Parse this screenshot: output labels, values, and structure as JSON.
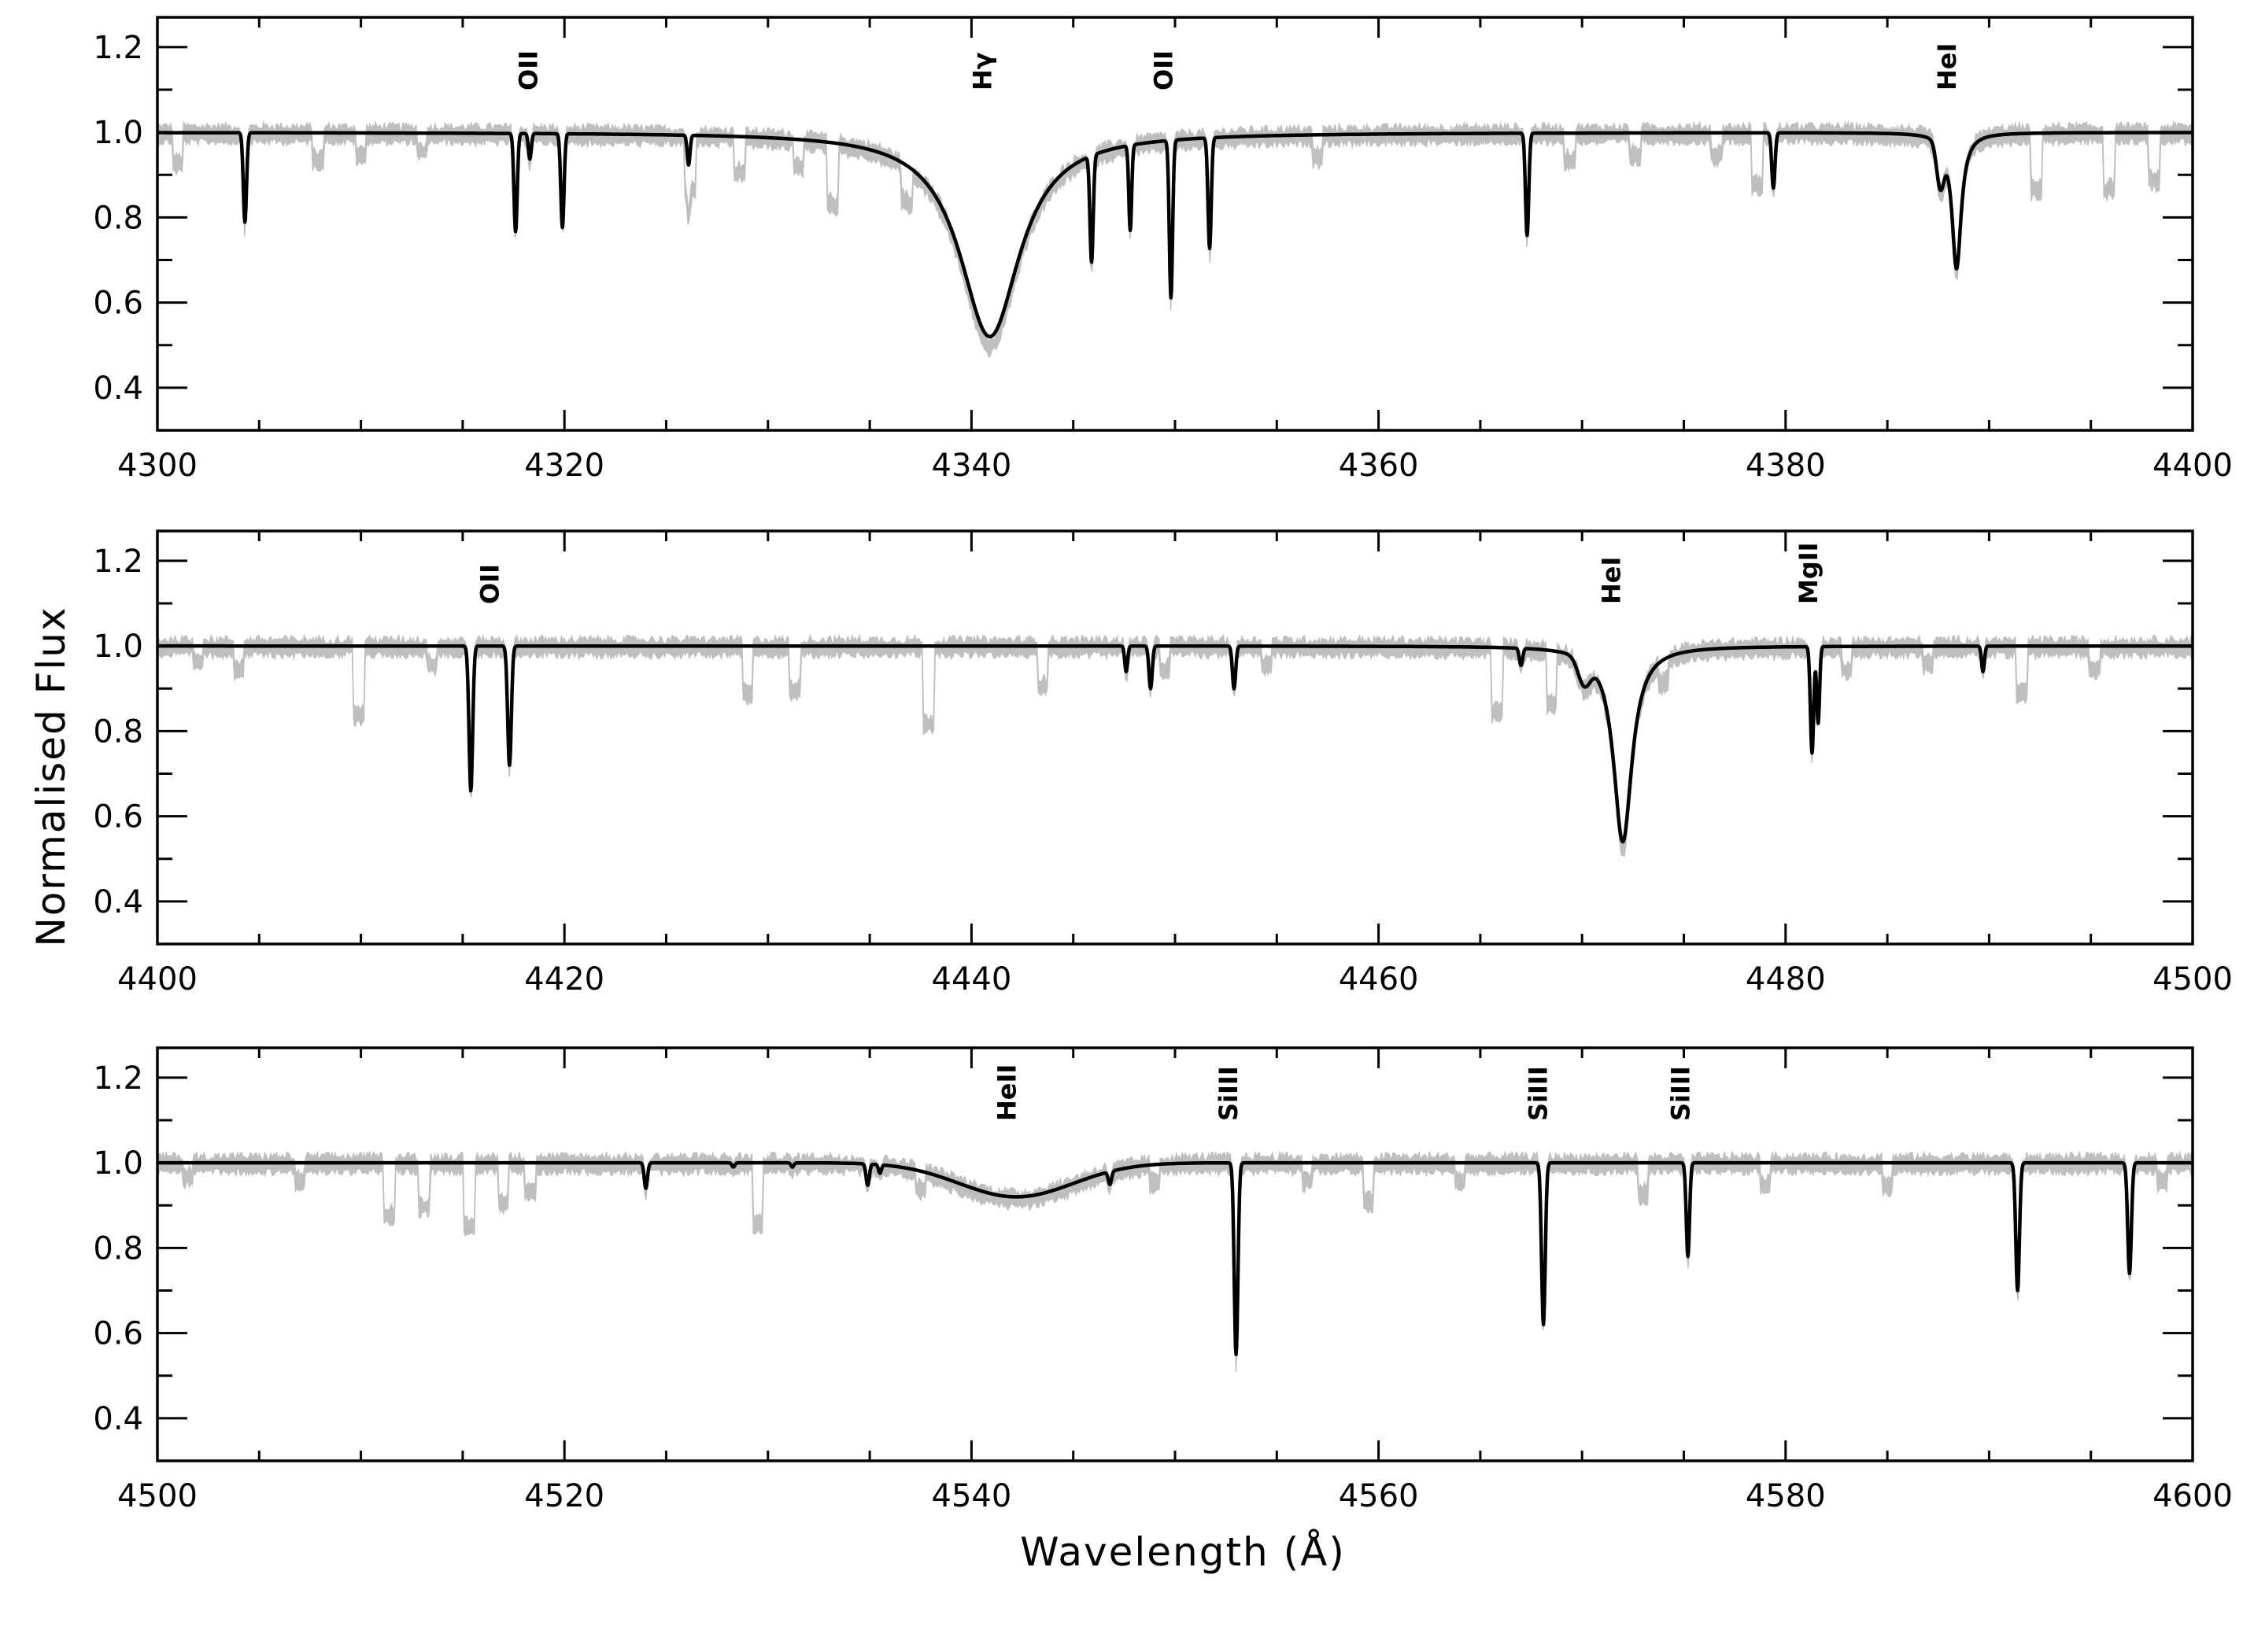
{
  "chart_data": [
    {
      "type": "line",
      "panel": "panel-1",
      "xlim": [
        4300,
        4400
      ],
      "ylim": [
        0.3,
        1.27
      ],
      "x_ticks": [
        4300,
        4320,
        4340,
        4360,
        4380,
        4400
      ],
      "x_tick_labels": [
        "4300",
        "4320",
        "4340",
        "4360",
        "4380",
        "4400"
      ],
      "y_ticks": [
        0.4,
        0.6,
        0.8,
        1.0,
        1.2
      ],
      "y_tick_labels": [
        "0.4",
        "0.6",
        "0.8",
        "1.0",
        "1.2"
      ],
      "continuum": 1.0,
      "line_labels": [
        {
          "text": "OII",
          "x": 4318.2
        },
        {
          "text": "Hγ",
          "x": 4340.5
        },
        {
          "text": "OII",
          "x": 4349.4
        },
        {
          "text": "HeI",
          "x": 4387.9
        }
      ],
      "model_lines": [
        {
          "center": 4304.3,
          "depth": 0.21,
          "width": 0.08,
          "shape": "gauss"
        },
        {
          "center": 4317.6,
          "depth": 0.23,
          "width": 0.08,
          "shape": "gauss"
        },
        {
          "center": 4318.3,
          "depth": 0.06,
          "width": 0.07,
          "shape": "gauss"
        },
        {
          "center": 4319.9,
          "depth": 0.22,
          "width": 0.08,
          "shape": "gauss"
        },
        {
          "center": 4326.1,
          "depth": 0.07,
          "width": 0.07,
          "shape": "gauss"
        },
        {
          "center": 4340.9,
          "depth": 0.48,
          "width": 1.8,
          "shape": "lorentz"
        },
        {
          "center": 4345.9,
          "depth": 0.25,
          "width": 0.08,
          "shape": "gauss"
        },
        {
          "center": 4347.8,
          "depth": 0.2,
          "width": 0.07,
          "shape": "gauss"
        },
        {
          "center": 4349.8,
          "depth": 0.37,
          "width": 0.08,
          "shape": "gauss"
        },
        {
          "center": 4351.7,
          "depth": 0.26,
          "width": 0.08,
          "shape": "gauss"
        },
        {
          "center": 4367.3,
          "depth": 0.24,
          "width": 0.08,
          "shape": "gauss"
        },
        {
          "center": 4379.4,
          "depth": 0.13,
          "width": 0.08,
          "shape": "gauss"
        },
        {
          "center": 4387.6,
          "depth": 0.1,
          "width": 0.18,
          "shape": "gauss"
        },
        {
          "center": 4388.4,
          "depth": 0.32,
          "width": 0.28,
          "shape": "lorentz"
        }
      ],
      "observed_extra_dips": [
        {
          "center": 4301.0,
          "depth": 0.07
        },
        {
          "center": 4307.9,
          "depth": 0.06
        },
        {
          "center": 4310.0,
          "depth": 0.05
        },
        {
          "center": 4313.0,
          "depth": 0.04
        },
        {
          "center": 4326.2,
          "depth": 0.12
        },
        {
          "center": 4328.6,
          "depth": 0.08
        },
        {
          "center": 4331.5,
          "depth": 0.06
        },
        {
          "center": 4333.2,
          "depth": 0.14
        },
        {
          "center": 4336.8,
          "depth": 0.08
        },
        {
          "center": 4357.0,
          "depth": 0.05
        },
        {
          "center": 4369.4,
          "depth": 0.06
        },
        {
          "center": 4372.6,
          "depth": 0.05
        },
        {
          "center": 4376.6,
          "depth": 0.05
        },
        {
          "center": 4378.6,
          "depth": 0.12
        },
        {
          "center": 4392.3,
          "depth": 0.13
        },
        {
          "center": 4395.9,
          "depth": 0.13
        },
        {
          "center": 4398.1,
          "depth": 0.11
        }
      ]
    },
    {
      "type": "line",
      "panel": "panel-2",
      "xlim": [
        4400,
        4500
      ],
      "ylim": [
        0.3,
        1.27
      ],
      "x_ticks": [
        4400,
        4420,
        4440,
        4460,
        4480,
        4500
      ],
      "x_tick_labels": [
        "4400",
        "4420",
        "4440",
        "4460",
        "4480",
        "4500"
      ],
      "y_ticks": [
        0.4,
        0.6,
        0.8,
        1.0,
        1.2
      ],
      "y_tick_labels": [
        "0.4",
        "0.6",
        "0.8",
        "1.0",
        "1.2"
      ],
      "continuum": 1.0,
      "line_labels": [
        {
          "text": "OII",
          "x": 4416.3
        },
        {
          "text": "HeI",
          "x": 4471.4
        },
        {
          "text": "MgII",
          "x": 4481.1
        }
      ],
      "model_lines": [
        {
          "center": 4415.4,
          "depth": 0.34,
          "width": 0.09,
          "shape": "gauss"
        },
        {
          "center": 4417.3,
          "depth": 0.28,
          "width": 0.09,
          "shape": "gauss"
        },
        {
          "center": 4447.6,
          "depth": 0.06,
          "width": 0.07,
          "shape": "gauss"
        },
        {
          "center": 4448.8,
          "depth": 0.1,
          "width": 0.08,
          "shape": "gauss"
        },
        {
          "center": 4452.9,
          "depth": 0.1,
          "width": 0.08,
          "shape": "gauss"
        },
        {
          "center": 4467.0,
          "depth": 0.04,
          "width": 0.08,
          "shape": "gauss"
        },
        {
          "center": 4470.1,
          "depth": 0.06,
          "width": 0.3,
          "shape": "gauss"
        },
        {
          "center": 4472.0,
          "depth": 0.46,
          "width": 0.55,
          "shape": "lorentz"
        },
        {
          "center": 4481.3,
          "depth": 0.25,
          "width": 0.08,
          "shape": "gauss"
        },
        {
          "center": 4481.6,
          "depth": 0.18,
          "width": 0.07,
          "shape": "gauss"
        },
        {
          "center": 4489.7,
          "depth": 0.06,
          "width": 0.07,
          "shape": "gauss"
        }
      ],
      "observed_extra_dips": [
        {
          "center": 4402.0,
          "depth": 0.03
        },
        {
          "center": 4404.0,
          "depth": 0.05
        },
        {
          "center": 4409.9,
          "depth": 0.16
        },
        {
          "center": 4413.5,
          "depth": 0.04
        },
        {
          "center": 4429.0,
          "depth": 0.11
        },
        {
          "center": 4431.3,
          "depth": 0.1
        },
        {
          "center": 4437.9,
          "depth": 0.18
        },
        {
          "center": 4443.5,
          "depth": 0.09
        },
        {
          "center": 4449.5,
          "depth": 0.05
        },
        {
          "center": 4454.5,
          "depth": 0.04
        },
        {
          "center": 4465.8,
          "depth": 0.15
        },
        {
          "center": 4468.5,
          "depth": 0.12
        },
        {
          "center": 4474.0,
          "depth": 0.05
        },
        {
          "center": 4483.0,
          "depth": 0.05
        },
        {
          "center": 4487.0,
          "depth": 0.04
        },
        {
          "center": 4491.6,
          "depth": 0.11
        },
        {
          "center": 4495.2,
          "depth": 0.05
        }
      ]
    },
    {
      "type": "line",
      "panel": "panel-3",
      "xlim": [
        4500,
        4600
      ],
      "ylim": [
        0.3,
        1.27
      ],
      "x_ticks": [
        4500,
        4520,
        4540,
        4560,
        4580,
        4600
      ],
      "x_tick_labels": [
        "4500",
        "4520",
        "4540",
        "4560",
        "4580",
        "4600"
      ],
      "y_ticks": [
        0.4,
        0.6,
        0.8,
        1.0,
        1.2
      ],
      "y_tick_labels": [
        "0.4",
        "0.6",
        "0.8",
        "1.0",
        "1.2"
      ],
      "continuum": 1.0,
      "line_labels": [
        {
          "text": "HeII",
          "x": 4541.7
        },
        {
          "text": "SiIII",
          "x": 4552.6
        },
        {
          "text": "SiIII",
          "x": 4567.8
        },
        {
          "text": "SiIII",
          "x": 4574.8
        }
      ],
      "model_lines": [
        {
          "center": 4524.0,
          "depth": 0.06,
          "width": 0.08,
          "shape": "gauss"
        },
        {
          "center": 4528.3,
          "depth": 0.01,
          "width": 0.07,
          "shape": "gauss"
        },
        {
          "center": 4531.2,
          "depth": 0.01,
          "width": 0.07,
          "shape": "gauss"
        },
        {
          "center": 4534.9,
          "depth": 0.05,
          "width": 0.08,
          "shape": "gauss"
        },
        {
          "center": 4535.5,
          "depth": 0.02,
          "width": 0.07,
          "shape": "gauss"
        },
        {
          "center": 4542.2,
          "depth": 0.08,
          "width": 2.8,
          "shape": "gauss"
        },
        {
          "center": 4546.8,
          "depth": 0.03,
          "width": 0.08,
          "shape": "gauss"
        },
        {
          "center": 4553.0,
          "depth": 0.45,
          "width": 0.09,
          "shape": "gauss"
        },
        {
          "center": 4568.1,
          "depth": 0.38,
          "width": 0.09,
          "shape": "gauss"
        },
        {
          "center": 4575.2,
          "depth": 0.22,
          "width": 0.08,
          "shape": "gauss"
        },
        {
          "center": 4591.4,
          "depth": 0.3,
          "width": 0.09,
          "shape": "gauss"
        },
        {
          "center": 4596.9,
          "depth": 0.26,
          "width": 0.09,
          "shape": "gauss"
        }
      ],
      "observed_extra_dips": [
        {
          "center": 4501.5,
          "depth": 0.03
        },
        {
          "center": 4507.0,
          "depth": 0.04
        },
        {
          "center": 4511.4,
          "depth": 0.12
        },
        {
          "center": 4513.1,
          "depth": 0.1
        },
        {
          "center": 4515.3,
          "depth": 0.15
        },
        {
          "center": 4517.0,
          "depth": 0.09
        },
        {
          "center": 4518.3,
          "depth": 0.06
        },
        {
          "center": 4529.5,
          "depth": 0.14
        },
        {
          "center": 4537.5,
          "depth": 0.04
        },
        {
          "center": 4549.0,
          "depth": 0.04
        },
        {
          "center": 4556.5,
          "depth": 0.04
        },
        {
          "center": 4559.5,
          "depth": 0.09
        },
        {
          "center": 4564.0,
          "depth": 0.04
        },
        {
          "center": 4573.0,
          "depth": 0.07
        },
        {
          "center": 4579.0,
          "depth": 0.05
        },
        {
          "center": 4585.0,
          "depth": 0.05
        },
        {
          "center": 4598.5,
          "depth": 0.04
        }
      ]
    }
  ],
  "axes": {
    "ylabel": "Normalised Flux",
    "xlabel": "Wavelength (Å)"
  },
  "colors": {
    "observed": "#bfbfbf",
    "model": "#000000",
    "frame": "#000000"
  }
}
